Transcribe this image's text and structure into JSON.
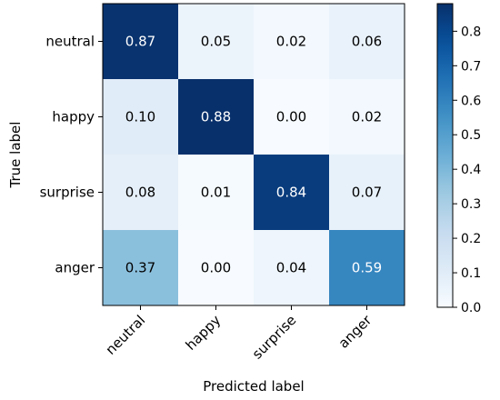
{
  "chart_data": {
    "type": "heatmap",
    "title": "",
    "xlabel": "Predicted label",
    "ylabel": "True label",
    "x_categories": [
      "neutral",
      "happy",
      "surprise",
      "anger"
    ],
    "y_categories": [
      "neutral",
      "happy",
      "surprise",
      "anger"
    ],
    "values": [
      [
        0.87,
        0.05,
        0.02,
        0.06
      ],
      [
        0.1,
        0.88,
        0.0,
        0.02
      ],
      [
        0.08,
        0.01,
        0.84,
        0.07
      ],
      [
        0.37,
        0.0,
        0.04,
        0.59
      ]
    ],
    "value_labels": [
      [
        "0.87",
        "0.05",
        "0.02",
        "0.06"
      ],
      [
        "0.10",
        "0.88",
        "0.00",
        "0.02"
      ],
      [
        "0.08",
        "0.01",
        "0.84",
        "0.07"
      ],
      [
        "0.37",
        "0.00",
        "0.04",
        "0.59"
      ]
    ],
    "colorbar": {
      "min": 0.0,
      "max": 0.88,
      "ticks": [
        0.0,
        0.1,
        0.2,
        0.3,
        0.4,
        0.5,
        0.6,
        0.7,
        0.8
      ],
      "tick_labels": [
        "0.0",
        "0.1",
        "0.2",
        "0.3",
        "0.4",
        "0.5",
        "0.6",
        "0.7",
        "0.8"
      ],
      "colormap": "Blues",
      "low_color": "#f7fbff",
      "high_color": "#08306b"
    },
    "x_tick_rotation": 45,
    "grid": false
  }
}
